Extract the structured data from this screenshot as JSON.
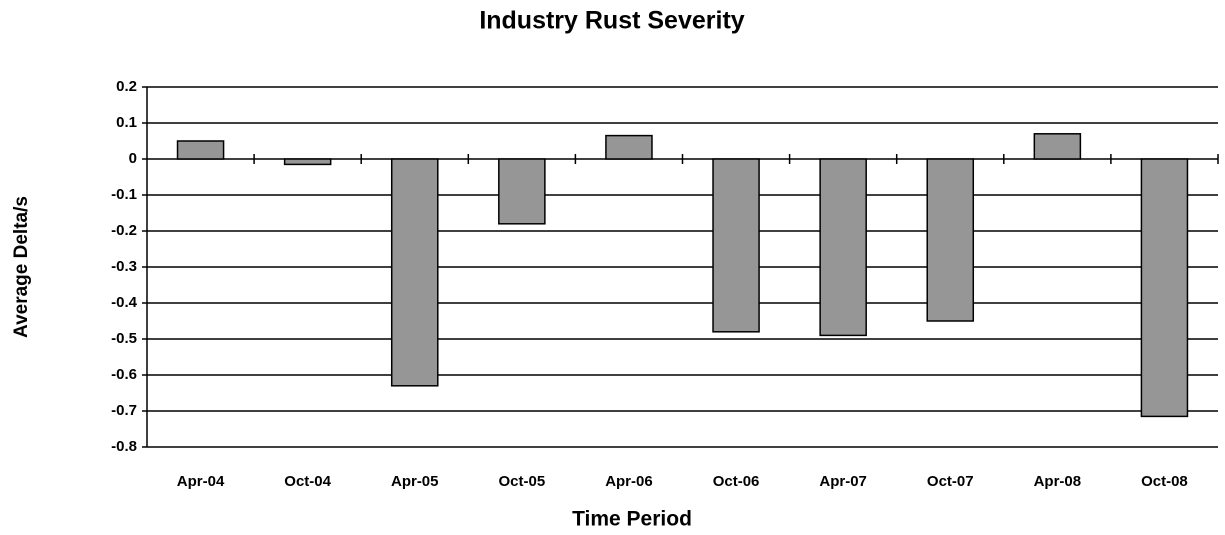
{
  "chart_data": {
    "type": "bar",
    "title": "Industry Rust Severity",
    "x_label": "Time Period",
    "y_label": "Average Delta/s",
    "categories": [
      "Apr-04",
      "Oct-04",
      "Apr-05",
      "Oct-05",
      "Apr-06",
      "Oct-06",
      "Apr-07",
      "Oct-07",
      "Apr-08",
      "Oct-08"
    ],
    "values": [
      0.05,
      -0.015,
      -0.63,
      -0.18,
      0.065,
      -0.48,
      -0.49,
      -0.45,
      0.07,
      -0.715
    ],
    "color": "#969696",
    "ylim": [
      -0.8,
      0.2
    ],
    "yticks": [
      -0.8,
      -0.7,
      -0.6,
      -0.5,
      -0.4,
      -0.3,
      -0.2,
      -0.1,
      0,
      0.1,
      0.2
    ],
    "grid": true
  }
}
